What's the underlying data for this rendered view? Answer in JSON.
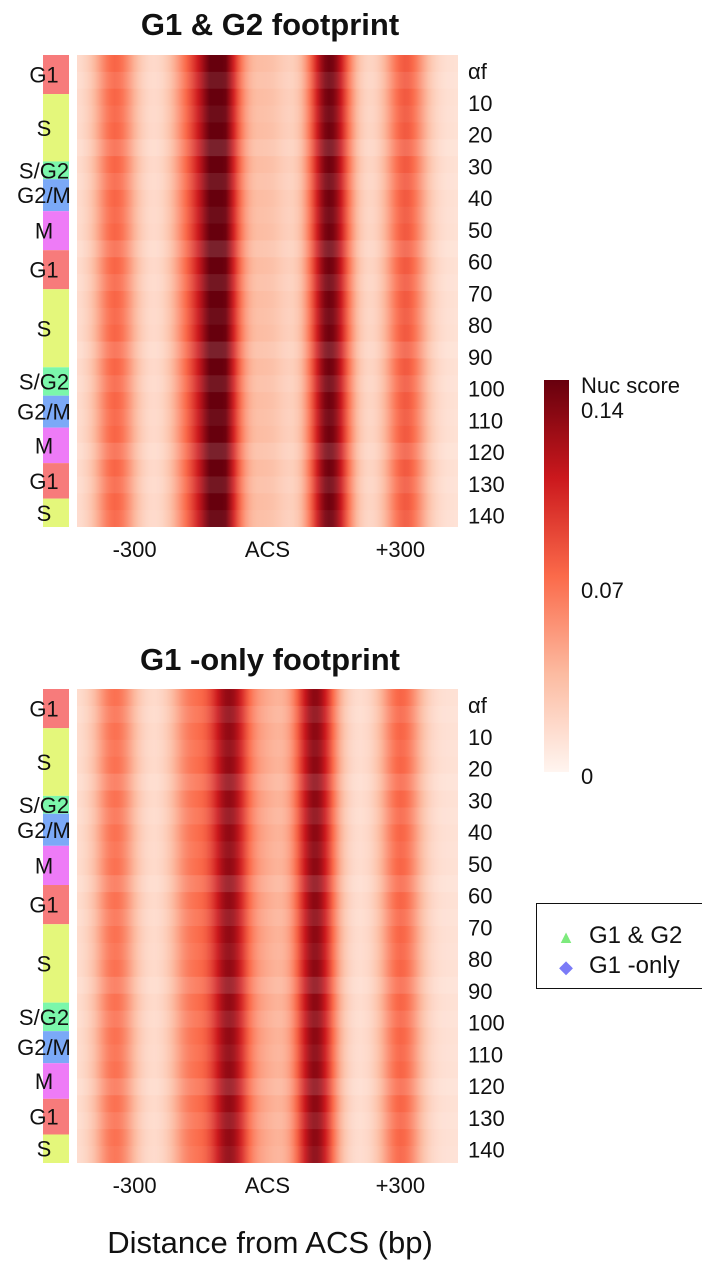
{
  "chart_data": [
    {
      "type": "heatmap",
      "title": "G1 & G2 footprint",
      "x_tick_labels": [
        "-300",
        "ACS",
        "+300"
      ],
      "y_tick_labels": [
        "αf",
        "10",
        "20",
        "30",
        "40",
        "50",
        "60",
        "70",
        "80",
        "90",
        "100",
        "110",
        "120",
        "130",
        "140"
      ],
      "phase_bands": [
        {
          "label": "G1",
          "from": 0,
          "to": 11,
          "color": "#f77b7b"
        },
        {
          "label": "S",
          "from": 11,
          "to": 30,
          "color": "#e4f77b"
        },
        {
          "label": "S/G2",
          "from": 30,
          "to": 35,
          "color": "#7bf7ab"
        },
        {
          "label": "G2/M",
          "from": 35,
          "to": 44,
          "color": "#7ba9f7"
        },
        {
          "label": "M",
          "from": 44,
          "to": 55,
          "color": "#ee7bf7"
        },
        {
          "label": "G1",
          "from": 55,
          "to": 66,
          "color": "#f77b7b"
        },
        {
          "label": "S",
          "from": 66,
          "to": 88,
          "color": "#e4f77b"
        },
        {
          "label": "S/G2",
          "from": 88,
          "to": 96,
          "color": "#7bf7ab"
        },
        {
          "label": "G2/M",
          "from": 96,
          "to": 105,
          "color": "#7ba9f7"
        },
        {
          "label": "M",
          "from": 105,
          "to": 115,
          "color": "#ee7bf7"
        },
        {
          "label": "G1",
          "from": 115,
          "to": 125,
          "color": "#f77b7b"
        },
        {
          "label": "S",
          "from": 125,
          "to": 133,
          "color": "#e4f77b"
        }
      ],
      "peaks_bp": [
        -150,
        0,
        150
      ],
      "nucleosomes": [
        {
          "position_bp": -320,
          "score": 0.06
        },
        {
          "position_bp": -160,
          "score": 0.05
        },
        {
          "position_bp": -100,
          "score": 0.13
        },
        {
          "position_bp": 0,
          "score": 0.02
        },
        {
          "position_bp": 130,
          "score": 0.125
        },
        {
          "position_bp": 290,
          "score": 0.065
        }
      ]
    },
    {
      "type": "heatmap",
      "title": "G1 -only footprint",
      "x_tick_labels": [
        "-300",
        "ACS",
        "+300"
      ],
      "y_tick_labels": [
        "αf",
        "10",
        "20",
        "30",
        "40",
        "50",
        "60",
        "70",
        "80",
        "90",
        "100",
        "110",
        "120",
        "130",
        "140"
      ],
      "phase_bands": [
        {
          "label": "G1",
          "from": 0,
          "to": 11,
          "color": "#f77b7b"
        },
        {
          "label": "S",
          "from": 11,
          "to": 30,
          "color": "#e4f77b"
        },
        {
          "label": "S/G2",
          "from": 30,
          "to": 35,
          "color": "#7bf7ab"
        },
        {
          "label": "G2/M",
          "from": 35,
          "to": 44,
          "color": "#7ba9f7"
        },
        {
          "label": "M",
          "from": 44,
          "to": 55,
          "color": "#ee7bf7"
        },
        {
          "label": "G1",
          "from": 55,
          "to": 66,
          "color": "#f77b7b"
        },
        {
          "label": "S",
          "from": 66,
          "to": 88,
          "color": "#e4f77b"
        },
        {
          "label": "S/G2",
          "from": 88,
          "to": 96,
          "color": "#7bf7ab"
        },
        {
          "label": "G2/M",
          "from": 96,
          "to": 105,
          "color": "#7ba9f7"
        },
        {
          "label": "M",
          "from": 105,
          "to": 115,
          "color": "#ee7bf7"
        },
        {
          "label": "G1",
          "from": 115,
          "to": 125,
          "color": "#f77b7b"
        },
        {
          "label": "S",
          "from": 125,
          "to": 133,
          "color": "#e4f77b"
        }
      ],
      "nucleosomes": [
        {
          "position_bp": -320,
          "score": 0.055
        },
        {
          "position_bp": -160,
          "score": 0.048
        },
        {
          "position_bp": -80,
          "score": 0.11
        },
        {
          "position_bp": 0,
          "score": 0.025
        },
        {
          "position_bp": 100,
          "score": 0.115
        },
        {
          "position_bp": 280,
          "score": 0.06
        }
      ]
    }
  ],
  "x_axis_label": "Distance from ACS (bp)",
  "colorbar": {
    "title": "Nuc score",
    "ticks": [
      "0.14",
      "0.07",
      "0"
    ],
    "range": [
      0,
      0.14
    ],
    "colors": [
      "#fff5f0",
      "#fcbba1",
      "#fb6a4a",
      "#cb181d",
      "#67000d"
    ]
  },
  "legend": [
    {
      "label": "G1 & G2",
      "marker": "▲",
      "color": "#7dea7d"
    },
    {
      "label": "G1 -only",
      "marker": "◆",
      "color": "#7b7bf7"
    }
  ]
}
